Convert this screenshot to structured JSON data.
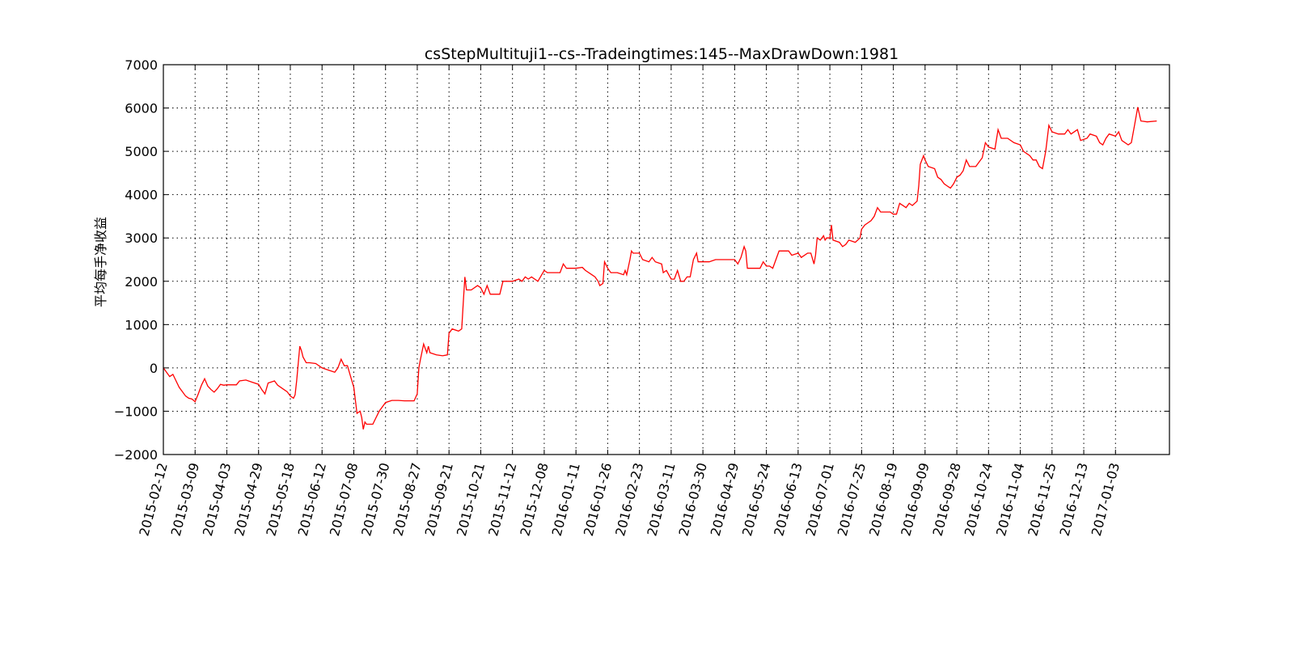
{
  "chart_data": {
    "type": "line",
    "title": "csStepMultituji1--cs--Tradeingtimes:145--MaxDrawDown:1981",
    "xlabel": "",
    "ylabel": "平均每手净收益",
    "ylim": [
      -2000,
      7000
    ],
    "yticks": [
      -2000,
      -1000,
      0,
      1000,
      2000,
      3000,
      4000,
      5000,
      6000,
      7000
    ],
    "ytick_labels": [
      "−2000",
      "−1000",
      "0",
      "1000",
      "2000",
      "3000",
      "4000",
      "5000",
      "6000",
      "7000"
    ],
    "x_tick_labels": [
      "2015-02-12",
      "2015-03-09",
      "2015-04-03",
      "2015-04-29",
      "2015-05-18",
      "2015-06-12",
      "2015-07-08",
      "2015-07-30",
      "2015-08-27",
      "2015-09-21",
      "2015-10-21",
      "2015-11-12",
      "2015-12-08",
      "2016-01-11",
      "2016-01-26",
      "2016-02-23",
      "2016-03-11",
      "2016-03-30",
      "2016-04-29",
      "2016-05-24",
      "2016-06-13",
      "2016-07-01",
      "2016-07-25",
      "2016-08-19",
      "2016-09-09",
      "2016-09-28",
      "2016-10-24",
      "2016-11-04",
      "2016-11-25",
      "2016-12-13",
      "2017-01-03"
    ],
    "grid": true,
    "legend": "none",
    "series": [
      {
        "color": "#ff0000",
        "points": [
          [
            0,
            0
          ],
          [
            0.1,
            -100
          ],
          [
            0.2,
            -200
          ],
          [
            0.3,
            -150
          ],
          [
            0.4,
            -300
          ],
          [
            0.5,
            -450
          ],
          [
            0.6,
            -550
          ],
          [
            0.7,
            -650
          ],
          [
            0.8,
            -700
          ],
          [
            0.9,
            -720
          ],
          [
            1.0,
            -780
          ],
          [
            1.1,
            -600
          ],
          [
            1.2,
            -400
          ],
          [
            1.3,
            -250
          ],
          [
            1.4,
            -420
          ],
          [
            1.5,
            -500
          ],
          [
            1.6,
            -560
          ],
          [
            1.7,
            -480
          ],
          [
            1.8,
            -380
          ],
          [
            1.9,
            -400
          ],
          [
            2.0,
            -390
          ],
          [
            2.3,
            -390
          ],
          [
            2.4,
            -300
          ],
          [
            2.6,
            -280
          ],
          [
            2.8,
            -330
          ],
          [
            3.0,
            -380
          ],
          [
            3.1,
            -500
          ],
          [
            3.2,
            -600
          ],
          [
            3.3,
            -350
          ],
          [
            3.5,
            -300
          ],
          [
            3.6,
            -400
          ],
          [
            3.8,
            -500
          ],
          [
            3.9,
            -550
          ],
          [
            4.0,
            -650
          ],
          [
            4.1,
            -700
          ],
          [
            4.15,
            -620
          ],
          [
            4.2,
            -300
          ],
          [
            4.3,
            500
          ],
          [
            4.35,
            400
          ],
          [
            4.4,
            250
          ],
          [
            4.5,
            120
          ],
          [
            4.6,
            120
          ],
          [
            4.8,
            100
          ],
          [
            5.0,
            0
          ],
          [
            5.2,
            -50
          ],
          [
            5.4,
            -100
          ],
          [
            5.5,
            0
          ],
          [
            5.6,
            200
          ],
          [
            5.7,
            50
          ],
          [
            5.8,
            50
          ],
          [
            5.9,
            -200
          ],
          [
            6.0,
            -450
          ],
          [
            6.1,
            -1050
          ],
          [
            6.2,
            -1000
          ],
          [
            6.25,
            -1150
          ],
          [
            6.3,
            -1420
          ],
          [
            6.35,
            -1250
          ],
          [
            6.4,
            -1300
          ],
          [
            6.6,
            -1300
          ],
          [
            6.7,
            -1150
          ],
          [
            6.8,
            -1000
          ],
          [
            7.0,
            -800
          ],
          [
            7.2,
            -750
          ],
          [
            7.4,
            -750
          ],
          [
            7.6,
            -760
          ],
          [
            7.9,
            -760
          ],
          [
            8.0,
            -600
          ],
          [
            8.05,
            0
          ],
          [
            8.1,
            200
          ],
          [
            8.2,
            550
          ],
          [
            8.3,
            350
          ],
          [
            8.35,
            500
          ],
          [
            8.4,
            350
          ],
          [
            8.6,
            300
          ],
          [
            8.8,
            280
          ],
          [
            8.95,
            300
          ],
          [
            9.0,
            800
          ],
          [
            9.1,
            900
          ],
          [
            9.3,
            850
          ],
          [
            9.4,
            900
          ],
          [
            9.45,
            1500
          ],
          [
            9.5,
            2100
          ],
          [
            9.55,
            1800
          ],
          [
            9.7,
            1800
          ],
          [
            9.9,
            1900
          ],
          [
            10.0,
            1850
          ],
          [
            10.1,
            1700
          ],
          [
            10.2,
            1900
          ],
          [
            10.3,
            1700
          ],
          [
            10.6,
            1700
          ],
          [
            10.7,
            2000
          ],
          [
            11.0,
            2000
          ],
          [
            11.2,
            2050
          ],
          [
            11.3,
            2000
          ],
          [
            11.4,
            2100
          ],
          [
            11.5,
            2050
          ],
          [
            11.6,
            2100
          ],
          [
            11.8,
            2000
          ],
          [
            12.0,
            2250
          ],
          [
            12.1,
            2200
          ],
          [
            12.5,
            2200
          ],
          [
            12.6,
            2400
          ],
          [
            12.7,
            2300
          ],
          [
            13.0,
            2300
          ],
          [
            13.2,
            2320
          ],
          [
            13.3,
            2250
          ],
          [
            13.5,
            2150
          ],
          [
            13.6,
            2100
          ],
          [
            13.7,
            2000
          ],
          [
            13.75,
            1900
          ],
          [
            13.85,
            1950
          ],
          [
            13.9,
            2450
          ],
          [
            14.0,
            2300
          ],
          [
            14.1,
            2200
          ],
          [
            14.3,
            2200
          ],
          [
            14.5,
            2150
          ],
          [
            14.55,
            2250
          ],
          [
            14.6,
            2150
          ],
          [
            14.7,
            2500
          ],
          [
            14.75,
            2700
          ],
          [
            14.8,
            2650
          ],
          [
            15.0,
            2650
          ],
          [
            15.1,
            2500
          ],
          [
            15.3,
            2450
          ],
          [
            15.4,
            2550
          ],
          [
            15.5,
            2450
          ],
          [
            15.7,
            2400
          ],
          [
            15.75,
            2200
          ],
          [
            15.85,
            2250
          ],
          [
            16.0,
            2050
          ],
          [
            16.1,
            2050
          ],
          [
            16.2,
            2250
          ],
          [
            16.3,
            2000
          ],
          [
            16.4,
            2000
          ],
          [
            16.5,
            2100
          ],
          [
            16.6,
            2100
          ],
          [
            16.7,
            2500
          ],
          [
            16.8,
            2650
          ],
          [
            16.85,
            2450
          ],
          [
            17.0,
            2450
          ],
          [
            17.2,
            2450
          ],
          [
            17.4,
            2500
          ],
          [
            18.0,
            2500
          ],
          [
            18.1,
            2400
          ],
          [
            18.2,
            2550
          ],
          [
            18.3,
            2800
          ],
          [
            18.35,
            2700
          ],
          [
            18.4,
            2300
          ],
          [
            18.6,
            2300
          ],
          [
            18.8,
            2300
          ],
          [
            18.9,
            2450
          ],
          [
            19.0,
            2350
          ],
          [
            19.1,
            2350
          ],
          [
            19.2,
            2300
          ],
          [
            19.3,
            2500
          ],
          [
            19.4,
            2700
          ],
          [
            19.7,
            2700
          ],
          [
            19.8,
            2600
          ],
          [
            20.0,
            2650
          ],
          [
            20.1,
            2550
          ],
          [
            20.3,
            2650
          ],
          [
            20.4,
            2650
          ],
          [
            20.5,
            2400
          ],
          [
            20.55,
            2600
          ],
          [
            20.6,
            3000
          ],
          [
            20.7,
            2950
          ],
          [
            20.8,
            3050
          ],
          [
            20.85,
            2950
          ],
          [
            20.9,
            3000
          ],
          [
            21.0,
            3000
          ],
          [
            21.05,
            3300
          ],
          [
            21.1,
            2950
          ],
          [
            21.3,
            2900
          ],
          [
            21.4,
            2800
          ],
          [
            21.5,
            2850
          ],
          [
            21.6,
            2950
          ],
          [
            21.8,
            2900
          ],
          [
            21.95,
            3000
          ],
          [
            22.0,
            3200
          ],
          [
            22.1,
            3300
          ],
          [
            22.2,
            3350
          ],
          [
            22.3,
            3400
          ],
          [
            22.4,
            3500
          ],
          [
            22.5,
            3700
          ],
          [
            22.6,
            3600
          ],
          [
            22.9,
            3600
          ],
          [
            23.0,
            3550
          ],
          [
            23.1,
            3550
          ],
          [
            23.2,
            3800
          ],
          [
            23.3,
            3750
          ],
          [
            23.4,
            3700
          ],
          [
            23.5,
            3800
          ],
          [
            23.6,
            3750
          ],
          [
            23.75,
            3850
          ],
          [
            23.8,
            4200
          ],
          [
            23.85,
            4700
          ],
          [
            23.95,
            4900
          ],
          [
            24.0,
            4800
          ],
          [
            24.1,
            4650
          ],
          [
            24.3,
            4600
          ],
          [
            24.4,
            4400
          ],
          [
            24.5,
            4350
          ],
          [
            24.6,
            4250
          ],
          [
            24.7,
            4200
          ],
          [
            24.8,
            4150
          ],
          [
            24.9,
            4250
          ],
          [
            25.0,
            4400
          ],
          [
            25.1,
            4450
          ],
          [
            25.2,
            4550
          ],
          [
            25.3,
            4800
          ],
          [
            25.4,
            4650
          ],
          [
            25.6,
            4650
          ],
          [
            25.7,
            4750
          ],
          [
            25.8,
            4850
          ],
          [
            25.9,
            5200
          ],
          [
            26.0,
            5100
          ],
          [
            26.2,
            5050
          ],
          [
            26.3,
            5500
          ],
          [
            26.4,
            5300
          ],
          [
            26.6,
            5300
          ],
          [
            26.8,
            5200
          ],
          [
            27.0,
            5150
          ],
          [
            27.1,
            5000
          ],
          [
            27.3,
            4900
          ],
          [
            27.4,
            4800
          ],
          [
            27.5,
            4800
          ],
          [
            27.6,
            4650
          ],
          [
            27.7,
            4600
          ],
          [
            27.8,
            5000
          ],
          [
            27.9,
            5600
          ],
          [
            28.0,
            5450
          ],
          [
            28.2,
            5400
          ],
          [
            28.4,
            5400
          ],
          [
            28.5,
            5500
          ],
          [
            28.6,
            5400
          ],
          [
            28.8,
            5500
          ],
          [
            28.9,
            5250
          ],
          [
            29.1,
            5300
          ],
          [
            29.2,
            5400
          ],
          [
            29.4,
            5350
          ],
          [
            29.5,
            5200
          ],
          [
            29.6,
            5150
          ],
          [
            29.7,
            5300
          ],
          [
            29.8,
            5400
          ],
          [
            30.0,
            5350
          ],
          [
            30.1,
            5450
          ],
          [
            30.2,
            5250
          ],
          [
            30.4,
            5150
          ],
          [
            30.5,
            5200
          ],
          [
            30.6,
            5600
          ],
          [
            30.7,
            6020
          ],
          [
            30.8,
            5700
          ],
          [
            31.0,
            5680
          ],
          [
            31.3,
            5700
          ]
        ]
      }
    ]
  }
}
